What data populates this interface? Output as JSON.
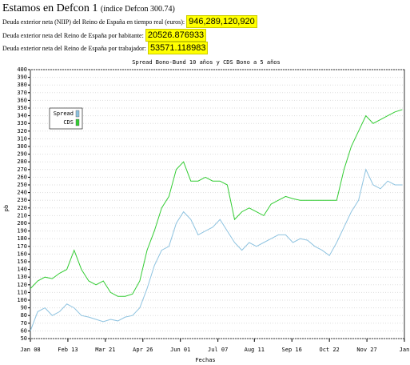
{
  "header": {
    "title": "Estamos en Defcon 1",
    "subtitle": "(índice Defcon 300.74)"
  },
  "rows": [
    {
      "label": "Deuda exterior neta (NIIP) del Reino de España en tiempo real (euros):",
      "value": "946,289,120,920"
    },
    {
      "label": "Deuda exterior neta del Reino de España por habitante:",
      "value": "20526.876933"
    },
    {
      "label": "Deuda exterior neta del Reino de España por trabajador:",
      "value": "53571.118983"
    }
  ],
  "chart_data": {
    "type": "line",
    "title": "Spread Bono-Bund 10 años y CDS Bono a 5 años",
    "x_label": "Fechas",
    "y_label": "pb",
    "x": [
      0,
      7,
      14,
      21,
      28,
      35,
      42,
      49,
      56,
      63,
      70,
      77,
      84,
      91,
      98,
      105,
      112,
      119,
      126,
      133,
      140,
      147,
      154,
      161,
      168,
      175,
      182,
      189,
      196,
      203,
      210,
      217,
      224,
      231,
      238,
      245,
      252,
      259,
      266,
      273,
      280,
      287,
      294,
      301,
      308,
      315,
      322,
      329,
      336,
      343,
      350,
      357
    ],
    "series": [
      {
        "name": "Spread",
        "color": "#8ec3e0",
        "values": [
          60,
          85,
          90,
          80,
          85,
          95,
          90,
          80,
          78,
          75,
          72,
          75,
          73,
          78,
          80,
          90,
          115,
          145,
          165,
          170,
          200,
          215,
          205,
          185,
          190,
          195,
          205,
          190,
          175,
          165,
          175,
          170,
          175,
          180,
          185,
          185,
          175,
          180,
          178,
          170,
          165,
          158,
          175,
          195,
          215,
          230,
          270,
          250,
          245,
          255,
          250,
          250
        ]
      },
      {
        "name": "CDS",
        "color": "#33cc33",
        "values": [
          115,
          125,
          130,
          128,
          135,
          140,
          165,
          140,
          125,
          120,
          125,
          110,
          105,
          105,
          108,
          125,
          165,
          190,
          220,
          235,
          270,
          280,
          255,
          255,
          260,
          255,
          255,
          250,
          205,
          215,
          220,
          215,
          210,
          225,
          230,
          235,
          232,
          230,
          230,
          230,
          230,
          230,
          230,
          270,
          300,
          320,
          340,
          330,
          335,
          340,
          345,
          348
        ]
      }
    ],
    "xlim": [
      0,
      359
    ],
    "xticks": [
      {
        "value": 0,
        "label": "Jan 08"
      },
      {
        "value": 36,
        "label": "Feb 13"
      },
      {
        "value": 72,
        "label": "Mar 21"
      },
      {
        "value": 108,
        "label": "Apr 26"
      },
      {
        "value": 144,
        "label": "Jun 01"
      },
      {
        "value": 180,
        "label": "Jul 07"
      },
      {
        "value": 215,
        "label": "Aug 11"
      },
      {
        "value": 251,
        "label": "Sep 16"
      },
      {
        "value": 287,
        "label": "Oct 22"
      },
      {
        "value": 323,
        "label": "Nov 27"
      },
      {
        "value": 359,
        "label": "Jan"
      }
    ],
    "ylim": [
      50,
      400
    ],
    "yticks": [
      50,
      60,
      70,
      80,
      90,
      100,
      110,
      120,
      130,
      140,
      150,
      160,
      170,
      180,
      190,
      200,
      210,
      220,
      230,
      240,
      250,
      260,
      270,
      280,
      290,
      300,
      310,
      320,
      330,
      340,
      350,
      360,
      370,
      380,
      390,
      400
    ],
    "grid": true,
    "legend": "upper left"
  }
}
